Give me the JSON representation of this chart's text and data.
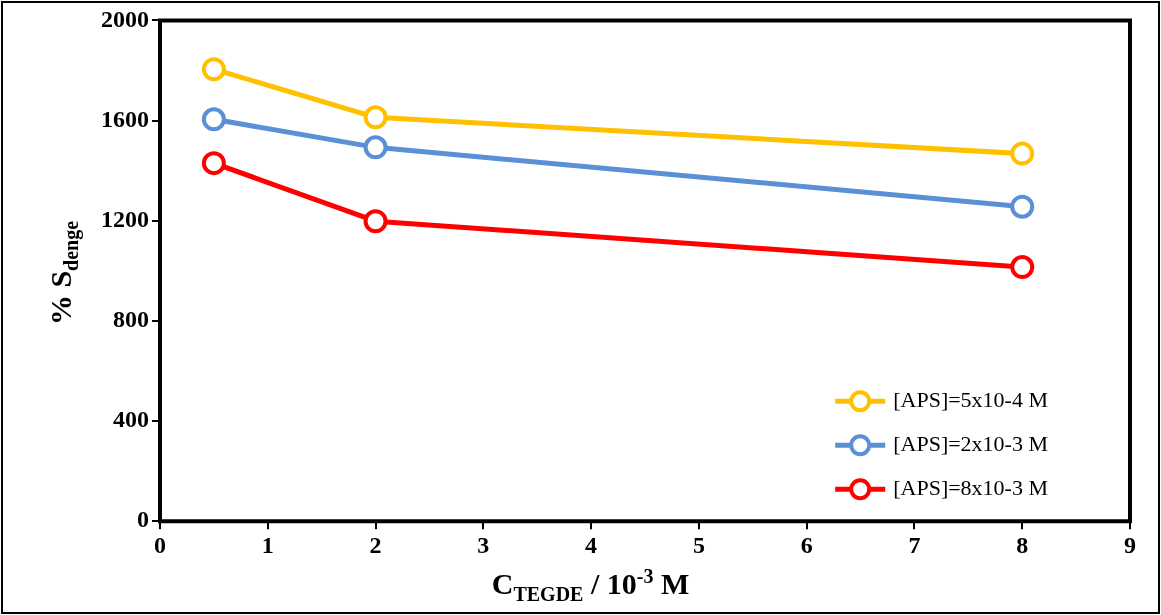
{
  "chart_data": {
    "type": "line",
    "xlabel": "C$_{TEGDE}$ / 10$^{-3}$ M",
    "ylabel": "% S$_{denge}$",
    "x": [
      0.5,
      2,
      8
    ],
    "series": [
      {
        "name": "[APS]=5x10-4 M",
        "color": "#ffc000",
        "values": [
          1805,
          1613,
          1468
        ]
      },
      {
        "name": "[APS]=2x10-3 M",
        "color": "#5b8fd6",
        "values": [
          1605,
          1493,
          1256
        ]
      },
      {
        "name": "[APS]=8x10-3 M",
        "color": "#ff0000",
        "values": [
          1430,
          1198,
          1015
        ]
      }
    ],
    "xlim": [
      0,
      9
    ],
    "xticks": [
      0,
      1,
      2,
      3,
      4,
      5,
      6,
      7,
      8,
      9
    ],
    "ylim": [
      0,
      2000
    ],
    "yticks": [
      0,
      400,
      800,
      1200,
      1600,
      2000
    ],
    "grid": false,
    "legend": "bottom right",
    "marker": "circle",
    "line_style": "solid"
  }
}
